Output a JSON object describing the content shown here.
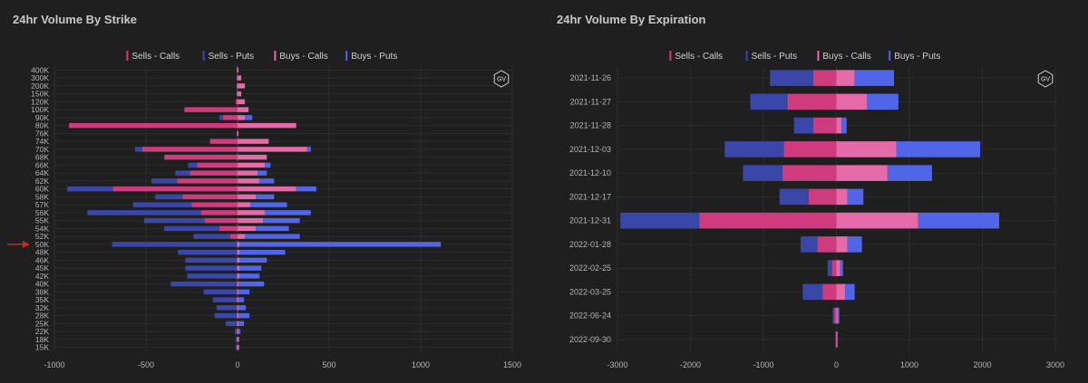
{
  "colors": {
    "sells_calls": "#cf3c7e",
    "sells_puts": "#3a47a8",
    "buys_calls": "#e46ba7",
    "buys_puts": "#5066e6",
    "grid": "#2c2c2c",
    "tick_text": "#b5b5b5",
    "marker": "#e01c1c"
  },
  "logo_text": "GV",
  "left": {
    "title": "24hr Volume By Strike",
    "chart_data": {
      "type": "bar",
      "orientation": "horizontal",
      "stacked": true,
      "categories": [
        "400K",
        "300K",
        "200K",
        "150K",
        "120K",
        "100K",
        "90K",
        "80K",
        "76K",
        "74K",
        "70K",
        "68K",
        "66K",
        "64K",
        "62K",
        "60K",
        "58K",
        "57K",
        "56K",
        "55K",
        "54K",
        "52K",
        "50K",
        "48K",
        "46K",
        "45K",
        "42K",
        "40K",
        "38K",
        "35K",
        "32K",
        "28K",
        "25K",
        "22K",
        "18K",
        "15K"
      ],
      "highlight_category": "50K",
      "xlim": [
        -1000,
        1500
      ],
      "xticks": [
        -1000,
        -500,
        0,
        500,
        1000,
        1500
      ],
      "legend": {
        "position": "top-center"
      },
      "series": [
        {
          "name": "Sells - Calls",
          "values": [
            -5,
            -5,
            -5,
            -5,
            -10,
            -290,
            -80,
            -920,
            -5,
            -150,
            -520,
            -400,
            -220,
            -260,
            -330,
            -680,
            -300,
            -250,
            -200,
            -180,
            -100,
            -40,
            -5,
            -5,
            -5,
            -5,
            -5,
            -5,
            -5,
            -5,
            -5,
            -5,
            -5,
            -5,
            -5,
            -5
          ]
        },
        {
          "name": "Sells - Puts",
          "values": [
            0,
            0,
            0,
            0,
            0,
            0,
            -20,
            0,
            0,
            0,
            -40,
            0,
            -50,
            -80,
            -140,
            -250,
            -150,
            -320,
            -620,
            -330,
            -300,
            -200,
            -680,
            -320,
            -280,
            -280,
            -270,
            -360,
            -180,
            -130,
            -110,
            -120,
            -60,
            -10,
            -5,
            -5
          ]
        },
        {
          "name": "Buys - Calls",
          "values": [
            5,
            20,
            40,
            20,
            40,
            60,
            40,
            320,
            5,
            170,
            380,
            160,
            150,
            110,
            120,
            320,
            100,
            70,
            150,
            140,
            100,
            40,
            10,
            10,
            10,
            10,
            10,
            5,
            5,
            5,
            5,
            5,
            5,
            5,
            5,
            5
          ]
        },
        {
          "name": "Buys - Puts",
          "values": [
            0,
            0,
            0,
            0,
            0,
            0,
            40,
            0,
            0,
            0,
            20,
            0,
            30,
            50,
            80,
            110,
            100,
            200,
            250,
            200,
            180,
            300,
            1100,
            250,
            150,
            120,
            110,
            140,
            60,
            30,
            40,
            60,
            30,
            10,
            5,
            5
          ]
        }
      ]
    }
  },
  "right": {
    "title": "24hr Volume By Expiration",
    "chart_data": {
      "type": "bar",
      "orientation": "horizontal",
      "stacked": true,
      "categories": [
        "2021-11-26",
        "2021-11-27",
        "2021-11-28",
        "2021-12-03",
        "2021-12-10",
        "2021-12-17",
        "2021-12-31",
        "2022-01-28",
        "2022-02-25",
        "2022-03-25",
        "2022-06-24",
        "2022-09-30"
      ],
      "xlim": [
        -3000,
        3000
      ],
      "xticks": [
        -3000,
        -2000,
        -1000,
        0,
        1000,
        2000,
        3000
      ],
      "legend": {
        "position": "top-center"
      },
      "series": [
        {
          "name": "Sells - Calls",
          "values": [
            -320,
            -670,
            -320,
            -720,
            -740,
            -380,
            -1880,
            -260,
            -60,
            -190,
            -30,
            -10
          ]
        },
        {
          "name": "Sells - Puts",
          "values": [
            -590,
            -510,
            -260,
            -810,
            -540,
            -400,
            -1080,
            -230,
            -60,
            -270,
            -20,
            -5
          ]
        },
        {
          "name": "Buys - Calls",
          "values": [
            250,
            420,
            70,
            820,
            700,
            150,
            1120,
            150,
            50,
            120,
            20,
            10
          ]
        },
        {
          "name": "Buys - Puts",
          "values": [
            540,
            430,
            70,
            1150,
            610,
            220,
            1110,
            200,
            40,
            130,
            20,
            10
          ]
        }
      ]
    }
  }
}
